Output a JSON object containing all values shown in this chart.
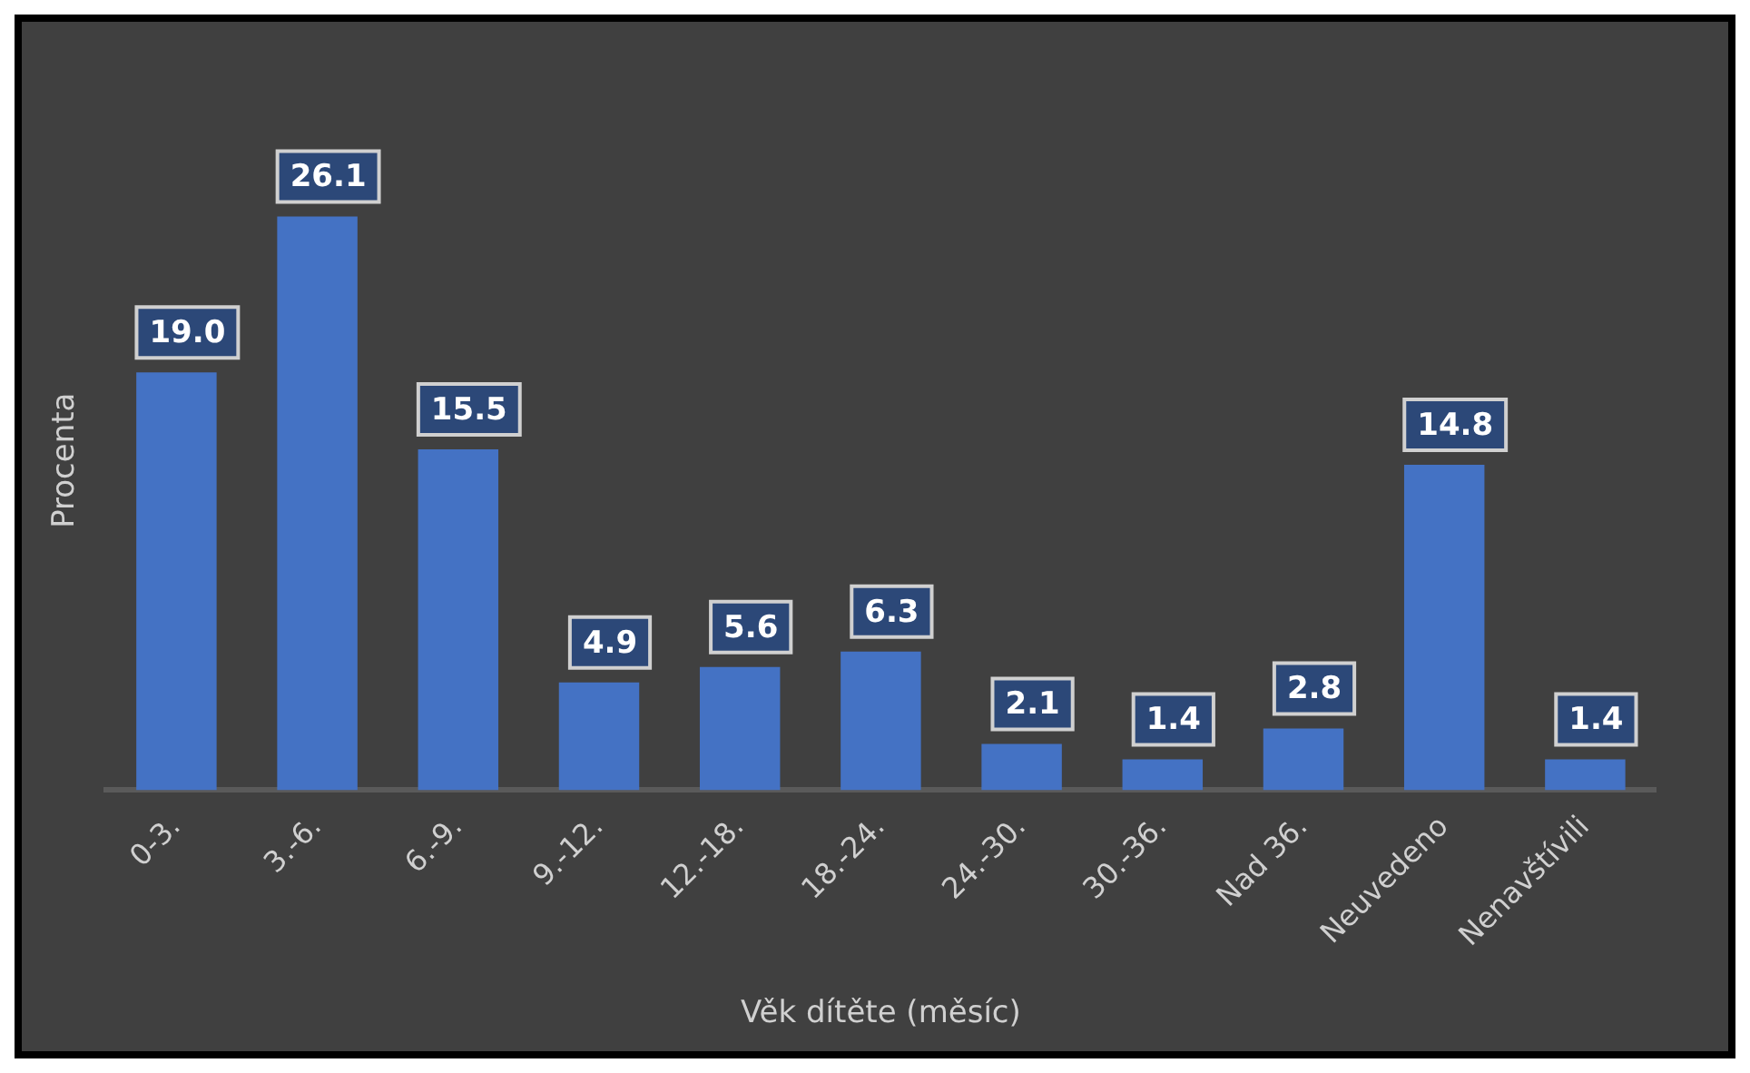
{
  "chart_data": {
    "type": "bar",
    "xlabel": "Věk dítěte (měsíc)",
    "ylabel": "Procenta",
    "categories": [
      "0-3.",
      "3.-6.",
      "6.-9.",
      "9.-12.",
      "12.-18.",
      "18.-24.",
      "24.-30.",
      "30.-36.",
      "Nad 36.",
      "Neuvedeno",
      "Nenavštívili"
    ],
    "values": [
      19.0,
      26.1,
      15.5,
      4.9,
      5.6,
      6.3,
      2.1,
      1.4,
      2.8,
      14.8,
      1.4
    ],
    "value_labels": [
      "19.0",
      "26.1",
      "15.5",
      "4.9",
      "5.6",
      "6.3",
      "2.1",
      "1.4",
      "2.8",
      "14.8",
      "1.4"
    ],
    "color": "#4472c4",
    "grid": false,
    "tick_labels": "x"
  }
}
